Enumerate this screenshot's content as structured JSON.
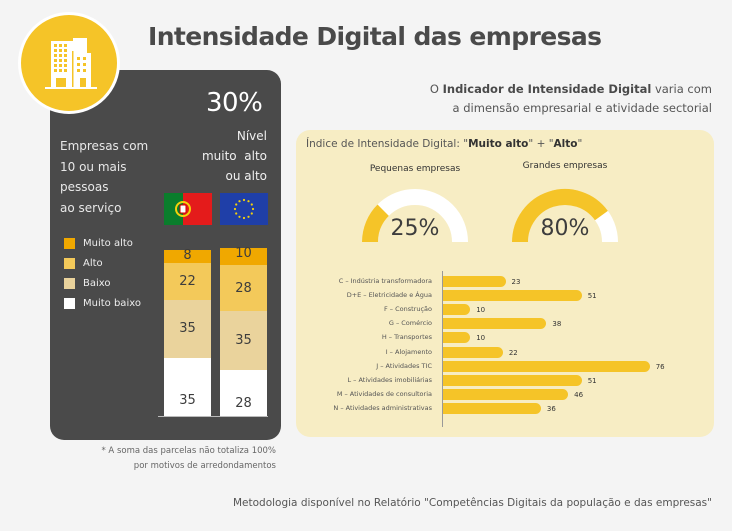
{
  "header": {
    "title": "Intensidade Digital das empresas",
    "logo_icon": "building-icon"
  },
  "left_panel": {
    "headline_pct": "30%",
    "nivel_lines": [
      "Nível",
      "muito  alto",
      "ou alto"
    ],
    "empresas_lines": [
      "Empresas com",
      "10 ou mais",
      "pessoas",
      "ao serviço"
    ],
    "flags": [
      {
        "name": "portugal-flag-icon",
        "label": "Portugal"
      },
      {
        "name": "eu-flag-icon",
        "label": "União Europeia"
      }
    ],
    "legend": [
      {
        "label": "Muito alto",
        "color": "#f0a800"
      },
      {
        "label": "Alto",
        "color": "#f3c95a"
      },
      {
        "label": "Baixo",
        "color": "#ead39c"
      },
      {
        "label": "Muito baixo",
        "color": "#ffffff"
      }
    ],
    "footnote_lines": [
      "* A soma das parcelas não totaliza 100%",
      "por motivos de arredondamentos"
    ]
  },
  "right_panel": {
    "subtitle_prefix": "O ",
    "subtitle_bold": "Indicador de Intensidade Digital",
    "subtitle_rest": " varia com",
    "subtitle_line2": "a dimensão empresarial e atividade sectorial",
    "index_title_prefix": "Índice de Intensidade Digital: \"",
    "index_title_bold1": "Muito alto",
    "index_title_mid": "\" + \"",
    "index_title_bold2": "Alto",
    "index_title_suffix": "\""
  },
  "footer": {
    "methodology": "Metodologia disponível no Relatório \"Competências Digitais da população e das empresas\""
  },
  "colors": {
    "accent": "#f5c428",
    "dark_panel": "#4a4a4a",
    "light_panel": "#f7edc4"
  },
  "chart_data": [
    {
      "type": "bar",
      "stacked": true,
      "title": "Empresas com 10 ou mais pessoas ao serviço",
      "categories": [
        "Portugal",
        "União Europeia"
      ],
      "series": [
        {
          "name": "Muito baixo",
          "values": [
            35,
            28
          ]
        },
        {
          "name": "Baixo",
          "values": [
            35,
            35
          ]
        },
        {
          "name": "Alto",
          "values": [
            22,
            28
          ]
        },
        {
          "name": "Muito alto",
          "values": [
            8,
            10
          ]
        }
      ],
      "labels": [
        [
          "35",
          "35",
          "22",
          "8"
        ],
        [
          "28",
          "35",
          "28",
          "10"
        ]
      ],
      "legend_position": "left"
    },
    {
      "type": "pie",
      "subtype": "gauge",
      "title": "Índice de Intensidade Digital: \"Muito alto\" + \"Alto\"",
      "gauges": [
        {
          "label": "Pequenas empresas",
          "value": 25,
          "display": "25%"
        },
        {
          "label": "Grandes empresas",
          "value": 80,
          "display": "80%"
        }
      ]
    },
    {
      "type": "bar",
      "orientation": "horizontal",
      "categories": [
        "C – Indústria transformadora",
        "D+E – Eletricidade e Água",
        "F – Construção",
        "G – Comércio",
        "H – Transportes",
        "I – Alojamento",
        "J – Atividades TIC",
        "L – Atividades imobiliárias",
        "M – Atividades de consultoria",
        "N – Atividades administrativas"
      ],
      "values": [
        23,
        51,
        10,
        38,
        10,
        22,
        76,
        51,
        46,
        36
      ],
      "xlim": [
        0,
        76
      ]
    }
  ]
}
